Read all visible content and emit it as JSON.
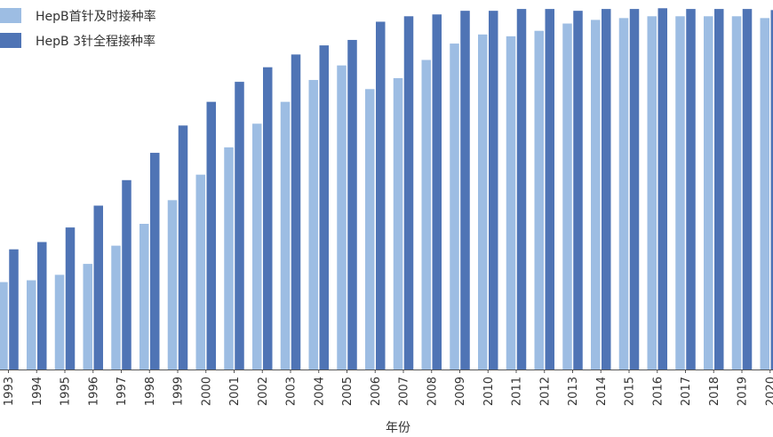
{
  "chart_data": {
    "type": "bar",
    "title": "",
    "xlabel": "年份",
    "ylabel": "",
    "ylim": [
      0,
      100
    ],
    "grid": false,
    "legend_position": "top-left",
    "categories": [
      "1993",
      "1994",
      "1995",
      "1996",
      "1997",
      "1998",
      "1999",
      "2000",
      "2001",
      "2002",
      "2003",
      "2004",
      "2005",
      "2006",
      "2007",
      "2008",
      "2009",
      "2010",
      "2011",
      "2012",
      "2013",
      "2014",
      "2015",
      "2016",
      "2017",
      "2018",
      "2019",
      "2020"
    ],
    "series": [
      {
        "name": "HepB首针及时接种率",
        "color": "#9dbde3",
        "values": [
          24,
          24.5,
          26,
          29,
          34,
          40,
          46.5,
          53.5,
          61,
          67.5,
          73.5,
          79.5,
          83.5,
          77,
          80,
          85,
          89.5,
          92,
          91.5,
          93,
          95,
          96,
          96.5,
          97,
          97,
          97,
          97,
          96.5
        ]
      },
      {
        "name": "HepB 3针全程接种率",
        "color": "#4f74b5",
        "values": [
          33,
          35,
          39,
          45,
          52,
          59.5,
          67,
          73.5,
          79,
          83,
          86.5,
          89,
          90.5,
          95.5,
          97,
          97.5,
          98.5,
          98.5,
          99,
          99,
          98.5,
          99,
          99,
          99.2,
          99,
          99,
          99,
          98.7
        ]
      }
    ]
  }
}
